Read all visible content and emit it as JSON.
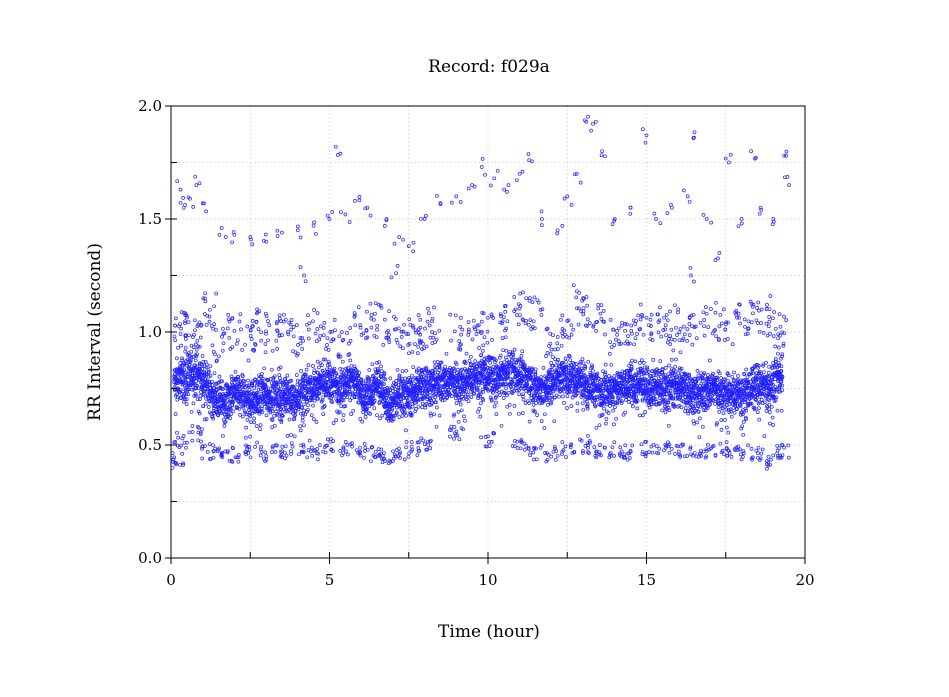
{
  "chart_data": {
    "type": "scatter",
    "title": "Record:  f029a",
    "xlabel": "Time (hour)",
    "ylabel": "RR Interval (second)",
    "xlim": [
      0,
      20
    ],
    "ylim": [
      0,
      2
    ],
    "x_ticks": [
      {
        "value": 0,
        "label": "0"
      },
      {
        "value": 5,
        "label": "5"
      },
      {
        "value": 10,
        "label": "10"
      },
      {
        "value": 15,
        "label": "15"
      },
      {
        "value": 20,
        "label": "20"
      }
    ],
    "y_ticks": [
      {
        "value": 0,
        "label": "0.0"
      },
      {
        "value": 0.5,
        "label": "0.5"
      },
      {
        "value": 1.0,
        "label": "1.0"
      },
      {
        "value": 1.5,
        "label": "1.5"
      },
      {
        "value": 2.0,
        "label": "2.0"
      }
    ],
    "grid": true,
    "point_color": "#2020ff",
    "series": [
      {
        "points_main": [
          [
            0.1,
            0.77
          ],
          [
            0.3,
            0.8
          ],
          [
            0.5,
            0.79
          ],
          [
            0.7,
            0.82
          ],
          [
            0.9,
            0.8
          ],
          [
            1.1,
            0.78
          ],
          [
            1.3,
            0.72
          ],
          [
            1.5,
            0.7
          ],
          [
            1.7,
            0.68
          ],
          [
            1.9,
            0.72
          ],
          [
            2.1,
            0.73
          ],
          [
            2.3,
            0.72
          ],
          [
            2.5,
            0.7
          ],
          [
            2.7,
            0.7
          ],
          [
            2.9,
            0.73
          ],
          [
            3.1,
            0.72
          ],
          [
            3.3,
            0.73
          ],
          [
            3.5,
            0.72
          ],
          [
            3.7,
            0.71
          ],
          [
            3.9,
            0.7
          ],
          [
            4.1,
            0.73
          ],
          [
            4.3,
            0.75
          ],
          [
            4.5,
            0.76
          ],
          [
            4.7,
            0.76
          ],
          [
            4.9,
            0.78
          ],
          [
            5.1,
            0.77
          ],
          [
            5.3,
            0.76
          ],
          [
            5.5,
            0.78
          ],
          [
            5.7,
            0.79
          ],
          [
            5.9,
            0.76
          ],
          [
            6.1,
            0.7
          ],
          [
            6.3,
            0.74
          ],
          [
            6.5,
            0.76
          ],
          [
            6.7,
            0.75
          ],
          [
            6.9,
            0.68
          ],
          [
            7.1,
            0.72
          ],
          [
            7.3,
            0.74
          ],
          [
            7.5,
            0.72
          ],
          [
            7.7,
            0.74
          ],
          [
            7.9,
            0.76
          ],
          [
            8.1,
            0.77
          ],
          [
            8.3,
            0.76
          ],
          [
            8.5,
            0.78
          ],
          [
            8.7,
            0.78
          ],
          [
            8.9,
            0.79
          ],
          [
            9.1,
            0.77
          ],
          [
            9.3,
            0.78
          ],
          [
            9.5,
            0.8
          ],
          [
            9.7,
            0.81
          ],
          [
            9.9,
            0.82
          ],
          [
            10.1,
            0.8
          ],
          [
            10.3,
            0.79
          ],
          [
            10.5,
            0.81
          ],
          [
            10.7,
            0.82
          ],
          [
            10.9,
            0.83
          ],
          [
            11.1,
            0.8
          ],
          [
            11.3,
            0.78
          ],
          [
            11.5,
            0.76
          ],
          [
            11.7,
            0.74
          ],
          [
            11.9,
            0.76
          ],
          [
            12.1,
            0.79
          ],
          [
            12.3,
            0.81
          ],
          [
            12.5,
            0.8
          ],
          [
            12.7,
            0.79
          ],
          [
            12.9,
            0.8
          ],
          [
            13.1,
            0.77
          ],
          [
            13.3,
            0.76
          ],
          [
            13.5,
            0.74
          ],
          [
            13.7,
            0.76
          ],
          [
            13.9,
            0.74
          ],
          [
            14.1,
            0.75
          ],
          [
            14.3,
            0.76
          ],
          [
            14.5,
            0.78
          ],
          [
            14.7,
            0.75
          ],
          [
            14.9,
            0.77
          ],
          [
            15.1,
            0.76
          ],
          [
            15.3,
            0.77
          ],
          [
            15.5,
            0.76
          ],
          [
            15.7,
            0.75
          ],
          [
            15.9,
            0.77
          ],
          [
            16.1,
            0.75
          ],
          [
            16.3,
            0.74
          ],
          [
            16.5,
            0.73
          ],
          [
            16.7,
            0.72
          ],
          [
            16.9,
            0.74
          ],
          [
            17.1,
            0.76
          ],
          [
            17.3,
            0.74
          ],
          [
            17.5,
            0.73
          ],
          [
            17.7,
            0.72
          ],
          [
            17.9,
            0.74
          ],
          [
            18.1,
            0.73
          ],
          [
            18.3,
            0.75
          ],
          [
            18.5,
            0.77
          ],
          [
            18.7,
            0.76
          ],
          [
            18.9,
            0.74
          ],
          [
            19.1,
            0.8
          ],
          [
            19.3,
            0.84
          ]
        ],
        "points_high": [
          [
            0.3,
            1.63
          ],
          [
            0.4,
            1.55
          ],
          [
            0.6,
            1.59
          ],
          [
            0.8,
            1.65
          ],
          [
            1.0,
            1.57
          ],
          [
            1.6,
            1.46
          ],
          [
            2.0,
            1.43
          ],
          [
            2.5,
            1.42
          ],
          [
            3.0,
            1.4
          ],
          [
            3.5,
            1.44
          ],
          [
            4.0,
            1.45
          ],
          [
            4.5,
            1.47
          ],
          [
            5.0,
            1.5
          ],
          [
            5.2,
            1.82
          ],
          [
            5.5,
            1.52
          ],
          [
            5.8,
            1.58
          ],
          [
            6.2,
            1.55
          ],
          [
            6.8,
            1.5
          ],
          [
            7.2,
            1.42
          ],
          [
            7.5,
            1.38
          ],
          [
            8.0,
            1.5
          ],
          [
            8.5,
            1.57
          ],
          [
            9.0,
            1.6
          ],
          [
            9.5,
            1.65
          ],
          [
            9.8,
            1.73
          ],
          [
            10.2,
            1.68
          ],
          [
            10.6,
            1.62
          ],
          [
            11.0,
            1.7
          ],
          [
            11.3,
            1.76
          ],
          [
            11.7,
            1.5
          ],
          [
            12.2,
            1.45
          ],
          [
            12.5,
            1.6
          ],
          [
            12.8,
            1.7
          ],
          [
            13.1,
            1.93
          ],
          [
            13.4,
            1.93
          ],
          [
            13.6,
            1.8
          ],
          [
            14.0,
            1.5
          ],
          [
            14.5,
            1.55
          ],
          [
            15.0,
            1.87
          ],
          [
            15.3,
            1.5
          ],
          [
            15.8,
            1.55
          ],
          [
            16.3,
            1.6
          ],
          [
            16.5,
            1.86
          ],
          [
            16.9,
            1.5
          ],
          [
            17.3,
            1.35
          ],
          [
            17.6,
            1.75
          ],
          [
            18.0,
            1.5
          ],
          [
            18.3,
            1.8
          ],
          [
            18.6,
            1.55
          ],
          [
            19.0,
            1.5
          ],
          [
            19.4,
            1.78
          ],
          [
            19.5,
            1.65
          ],
          [
            4.2,
            1.25
          ],
          [
            7.1,
            1.26
          ],
          [
            16.4,
            1.25
          ],
          [
            11.2,
            1.05
          ],
          [
            12.8,
            1.18
          ],
          [
            13.0,
            1.15
          ],
          [
            16.0,
            1.1
          ],
          [
            18.8,
            1.12
          ]
        ],
        "points_mid": [
          [
            0.3,
            1.0
          ],
          [
            0.5,
            1.05
          ],
          [
            0.8,
            0.98
          ],
          [
            1.2,
            1.1
          ],
          [
            1.5,
            0.95
          ],
          [
            2.0,
            1.0
          ],
          [
            2.4,
            0.95
          ],
          [
            2.8,
            1.02
          ],
          [
            3.2,
            0.97
          ],
          [
            3.6,
            1.0
          ],
          [
            4.0,
            0.96
          ],
          [
            4.5,
            1.02
          ],
          [
            5.0,
            1.0
          ],
          [
            5.5,
            0.95
          ],
          [
            6.0,
            1.03
          ],
          [
            6.5,
            1.05
          ],
          [
            6.9,
            1.02
          ],
          [
            7.3,
            0.98
          ],
          [
            7.7,
            0.96
          ],
          [
            8.0,
            1.0
          ],
          [
            8.3,
            1.03
          ],
          [
            9.0,
            1.0
          ],
          [
            9.5,
            0.98
          ],
          [
            10.0,
            1.01
          ],
          [
            10.5,
            1.05
          ],
          [
            11.0,
            1.1
          ],
          [
            11.5,
            1.08
          ],
          [
            12.0,
            0.96
          ],
          [
            12.5,
            1.02
          ],
          [
            13.0,
            1.1
          ],
          [
            13.5,
            1.05
          ],
          [
            14.0,
            0.98
          ],
          [
            14.4,
            1.02
          ],
          [
            14.8,
            1.05
          ],
          [
            15.2,
            1.04
          ],
          [
            15.6,
            1.02
          ],
          [
            16.0,
            0.95
          ],
          [
            16.5,
            1.0
          ],
          [
            17.0,
            1.05
          ],
          [
            17.5,
            1.02
          ],
          [
            18.0,
            1.05
          ],
          [
            18.4,
            1.07
          ],
          [
            18.8,
            1.04
          ],
          [
            19.2,
            1.0
          ]
        ],
        "points_low": [
          [
            0.2,
            0.43
          ],
          [
            0.3,
            0.52
          ],
          [
            0.8,
            0.55
          ],
          [
            1.2,
            0.47
          ],
          [
            1.5,
            0.47
          ],
          [
            2.0,
            0.46
          ],
          [
            2.5,
            0.48
          ],
          [
            3.0,
            0.46
          ],
          [
            3.5,
            0.47
          ],
          [
            4.0,
            0.48
          ],
          [
            4.5,
            0.47
          ],
          [
            5.0,
            0.5
          ],
          [
            5.5,
            0.48
          ],
          [
            6.0,
            0.47
          ],
          [
            6.5,
            0.46
          ],
          [
            6.8,
            0.45
          ],
          [
            7.2,
            0.46
          ],
          [
            7.6,
            0.48
          ],
          [
            8.0,
            0.5
          ],
          [
            9.0,
            0.55
          ],
          [
            10.0,
            0.52
          ],
          [
            11.0,
            0.5
          ],
          [
            11.5,
            0.47
          ],
          [
            12.0,
            0.46
          ],
          [
            12.5,
            0.48
          ],
          [
            13.0,
            0.49
          ],
          [
            13.5,
            0.47
          ],
          [
            14.0,
            0.48
          ],
          [
            14.5,
            0.47
          ],
          [
            15.0,
            0.48
          ],
          [
            15.5,
            0.49
          ],
          [
            16.0,
            0.48
          ],
          [
            16.5,
            0.48
          ],
          [
            17.0,
            0.47
          ],
          [
            17.5,
            0.48
          ],
          [
            18.0,
            0.47
          ],
          [
            18.5,
            0.46
          ],
          [
            19.0,
            0.42
          ],
          [
            19.3,
            0.47
          ]
        ]
      }
    ]
  }
}
